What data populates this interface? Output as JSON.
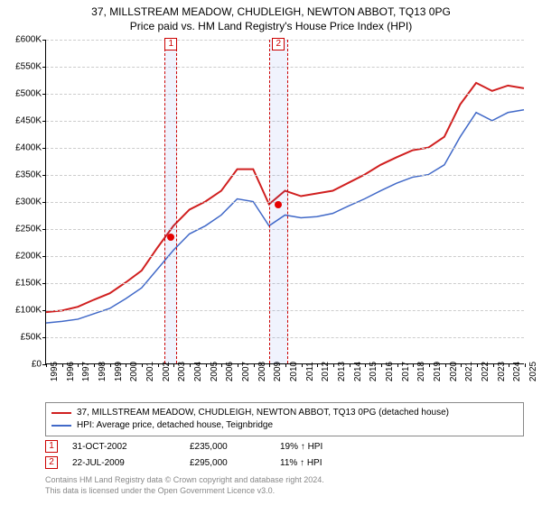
{
  "title_main": "37, MILLSTREAM MEADOW, CHUDLEIGH, NEWTON ABBOT, TQ13 0PG",
  "title_sub": "Price paid vs. HM Land Registry's House Price Index (HPI)",
  "chart": {
    "type": "line",
    "background_color": "#ffffff",
    "grid_color": "#cccccc",
    "axis_color": "#000000",
    "xlim": [
      1995,
      2025
    ],
    "ylim": [
      0,
      600000
    ],
    "ytick_step": 50000,
    "ytick_prefix": "£",
    "ytick_labels": [
      "£0",
      "£50K",
      "£100K",
      "£150K",
      "£200K",
      "£250K",
      "£300K",
      "£350K",
      "£400K",
      "£450K",
      "£500K",
      "£550K",
      "£600K"
    ],
    "xtick_step": 1,
    "xticks": [
      1995,
      1996,
      1997,
      1998,
      1999,
      2000,
      2001,
      2002,
      2003,
      2004,
      2005,
      2006,
      2007,
      2008,
      2009,
      2010,
      2011,
      2012,
      2013,
      2014,
      2015,
      2016,
      2017,
      2018,
      2019,
      2020,
      2021,
      2022,
      2023,
      2024,
      2025
    ],
    "tick_fontsize": 10,
    "series": [
      {
        "name": "37, MILLSTREAM MEADOW, CHUDLEIGH, NEWTON ABBOT, TQ13 0PG (detached house)",
        "color": "#d01f1f",
        "width": 2,
        "x": [
          1995,
          1996,
          1997,
          1998,
          1999,
          2000,
          2001,
          2002,
          2003,
          2004,
          2005,
          2006,
          2007,
          2008,
          2009,
          2010,
          2011,
          2012,
          2013,
          2014,
          2015,
          2016,
          2017,
          2018,
          2019,
          2020,
          2021,
          2022,
          2023,
          2024,
          2025
        ],
        "y": [
          95000,
          98000,
          105000,
          118000,
          130000,
          150000,
          172000,
          215000,
          255000,
          285000,
          300000,
          320000,
          360000,
          360000,
          295000,
          320000,
          310000,
          315000,
          320000,
          335000,
          350000,
          368000,
          382000,
          395000,
          400000,
          420000,
          480000,
          520000,
          505000,
          515000,
          510000
        ]
      },
      {
        "name": "HPI: Average price, detached house, Teignbridge",
        "color": "#4169c8",
        "width": 1.5,
        "x": [
          1995,
          1996,
          1997,
          1998,
          1999,
          2000,
          2001,
          2002,
          2003,
          2004,
          2005,
          2006,
          2007,
          2008,
          2009,
          2010,
          2011,
          2012,
          2013,
          2014,
          2015,
          2016,
          2017,
          2018,
          2019,
          2020,
          2021,
          2022,
          2023,
          2024,
          2025
        ],
        "y": [
          75000,
          78000,
          82000,
          92000,
          102000,
          120000,
          140000,
          175000,
          210000,
          240000,
          255000,
          275000,
          305000,
          300000,
          255000,
          275000,
          270000,
          272000,
          278000,
          292000,
          305000,
          320000,
          334000,
          345000,
          350000,
          368000,
          420000,
          465000,
          450000,
          465000,
          470000
        ]
      }
    ],
    "sale_band_color": "rgba(64,105,225,0.08)",
    "sale_band_border": "#cc0000",
    "sale_marker_color": "#e60000",
    "sales": [
      {
        "label": "1",
        "date_str": "31-OCT-2002",
        "x": 2002.83,
        "price": 235000,
        "price_str": "£235,000",
        "hpi_str": "19% ↑ HPI",
        "band_halfwidth": 0.4
      },
      {
        "label": "2",
        "date_str": "22-JUL-2009",
        "x": 2009.56,
        "price": 295000,
        "price_str": "£295,000",
        "hpi_str": "11% ↑ HPI",
        "band_halfwidth": 0.6
      }
    ]
  },
  "legend": {
    "border_color": "#888888",
    "fontsize": 10,
    "items": [
      {
        "color": "#d01f1f",
        "label": "37, MILLSTREAM MEADOW, CHUDLEIGH, NEWTON ABBOT, TQ13 0PG (detached house)"
      },
      {
        "color": "#4169c8",
        "label": "HPI: Average price, detached house, Teignbridge"
      }
    ]
  },
  "attribution": {
    "line1": "Contains HM Land Registry data © Crown copyright and database right 2024.",
    "line2": "This data is licensed under the Open Government Licence v3.0."
  }
}
